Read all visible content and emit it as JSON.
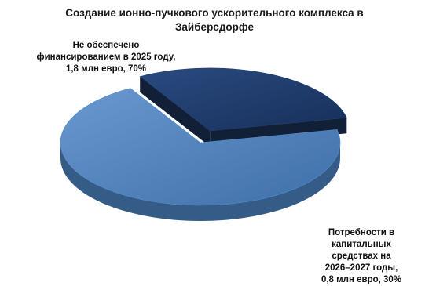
{
  "chart_data": {
    "type": "pie",
    "style": "3d-exploded",
    "title_lines": [
      "Создание ионно-пучкового ускорительного комплекса в",
      "Зайберсдорфе"
    ],
    "slices": [
      {
        "value": 70,
        "color": "#4a7ebb",
        "label_lines": [
          "Не обеспечено",
          "финансированием в 2025 году,",
          "1,8 млн евро, 70%"
        ]
      },
      {
        "value": 30,
        "color": "#1f3864",
        "label_lines": [
          "Потребности в капитальных",
          "средствах на",
          "2026–2027 годы,",
          "0,8 млн евро, 30%"
        ]
      }
    ],
    "grid": false,
    "legend": "none"
  }
}
